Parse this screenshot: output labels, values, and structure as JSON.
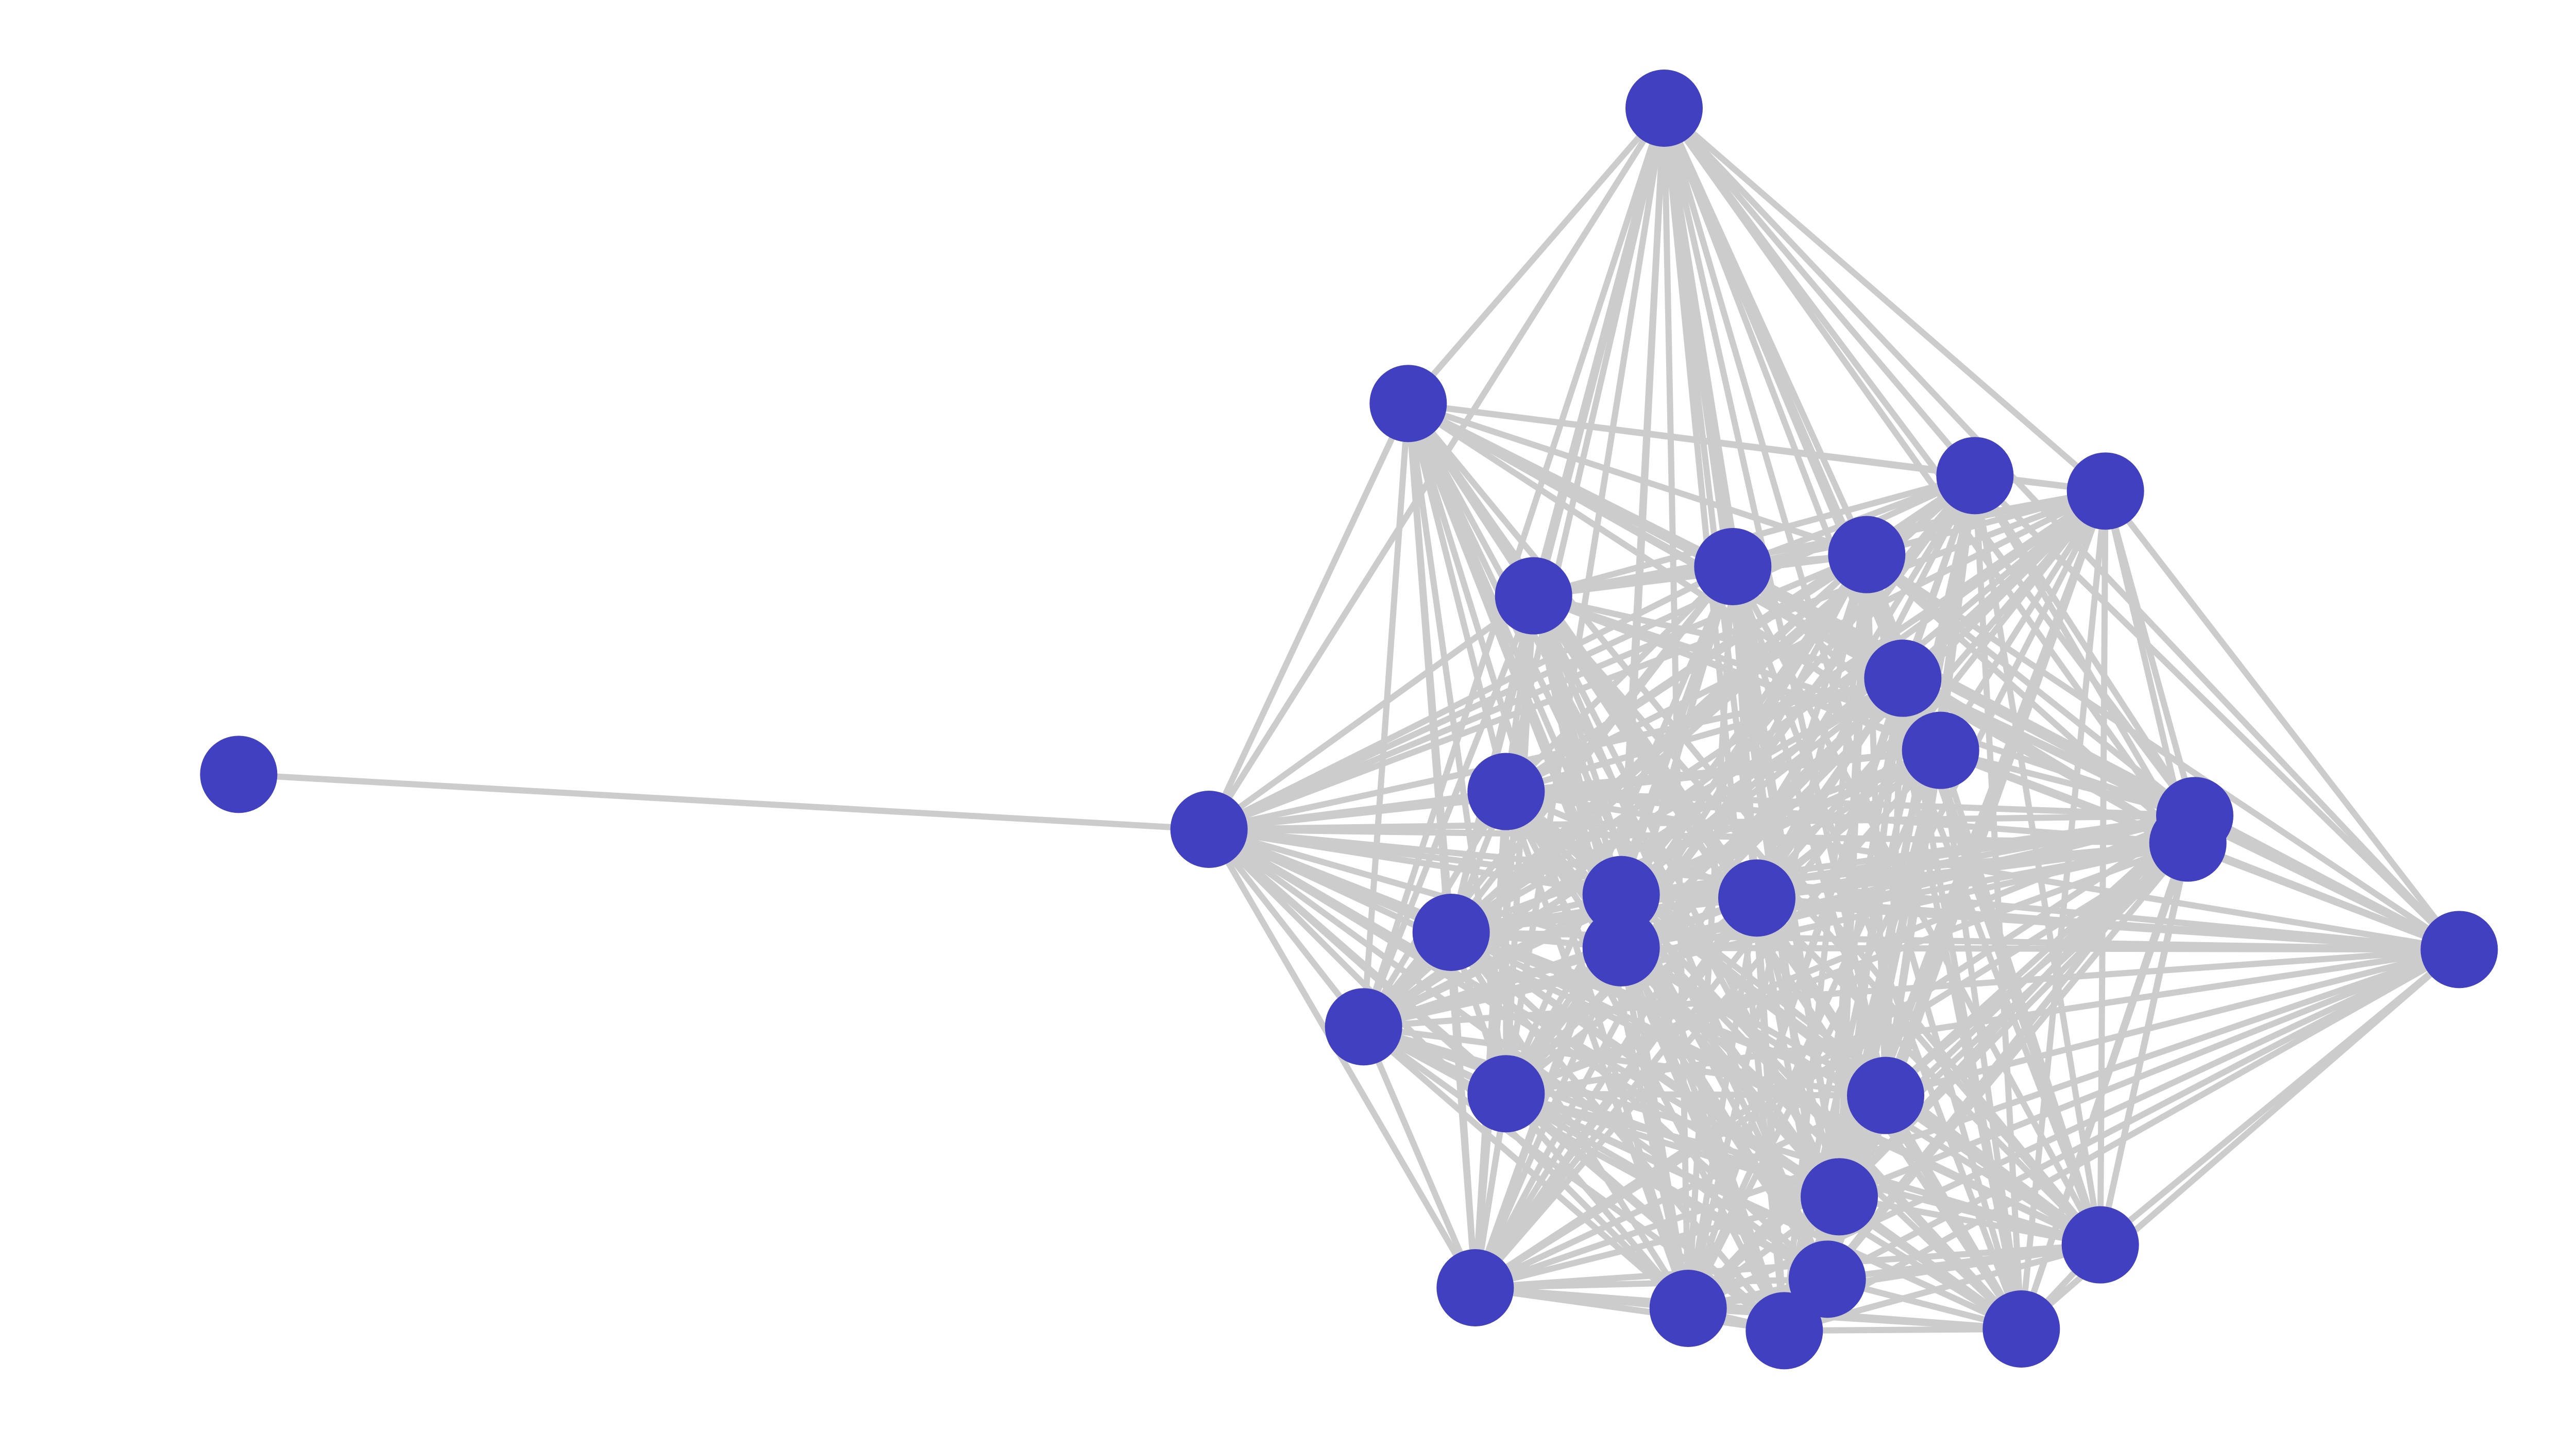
{
  "graph": {
    "node_color": "#4040C0",
    "edge_color": "#CCCCCC",
    "background": "#FFFFFF",
    "nodes": [
      1,
      2,
      3,
      4,
      5,
      6,
      7,
      8,
      9,
      10,
      11,
      12,
      13,
      14,
      15,
      16,
      17,
      18,
      19,
      20,
      21,
      22,
      23,
      24,
      25,
      26,
      27,
      28,
      29
    ],
    "edges": [
      [
        10,
        11
      ]
    ],
    "fully_connected_group": [
      1,
      2,
      3,
      4,
      5,
      6,
      7,
      8,
      9,
      11,
      12,
      13,
      14,
      15,
      16,
      17,
      18,
      19,
      20,
      21,
      22,
      23,
      24,
      25,
      26,
      27,
      28,
      29
    ]
  }
}
